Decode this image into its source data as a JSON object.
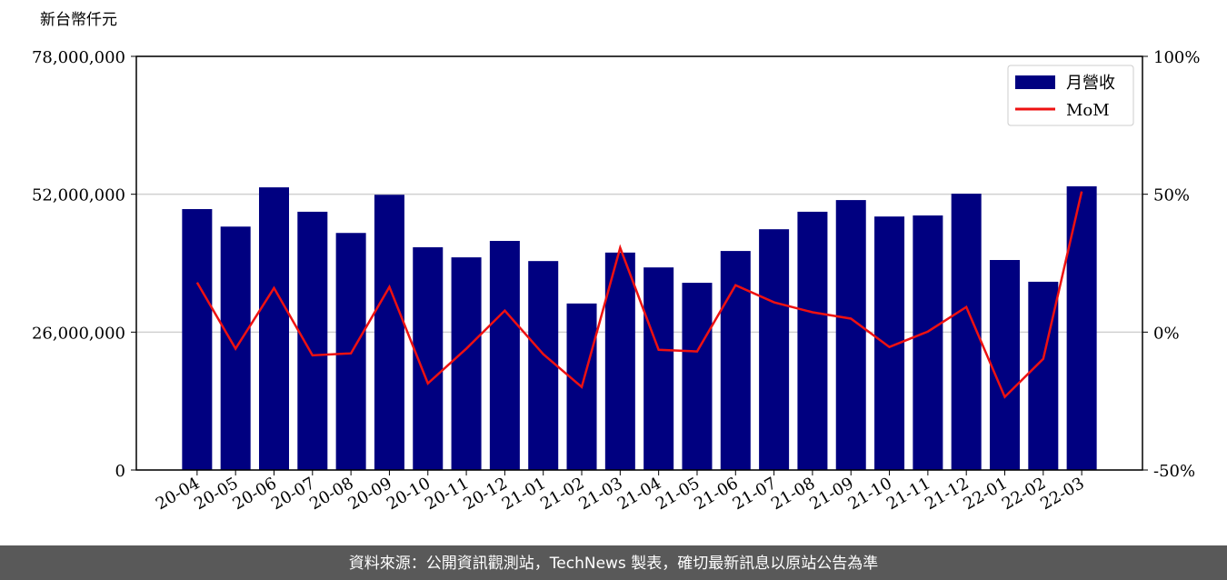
{
  "chart_data": {
    "type": "bar_line",
    "y_label": "新台幣仟元",
    "categories": [
      "20-04",
      "20-05",
      "20-06",
      "20-07",
      "20-08",
      "20-09",
      "20-10",
      "20-11",
      "20-12",
      "21-01",
      "21-02",
      "21-03",
      "21-04",
      "21-05",
      "21-06",
      "21-07",
      "21-08",
      "21-09",
      "21-10",
      "21-11",
      "21-12",
      "22-01",
      "22-02",
      "22-03"
    ],
    "series": [
      {
        "name": "月營收",
        "color": "#000080",
        "values": [
          49200000,
          45900000,
          53300000,
          48700000,
          44700000,
          51900000,
          42000000,
          40100000,
          43200000,
          39400000,
          31400000,
          41000000,
          38200000,
          35300000,
          41300000,
          45400000,
          48700000,
          50900000,
          47800000,
          48000000,
          52100000,
          39600000,
          35500000,
          53500000
        ]
      },
      {
        "name": "MoM",
        "color": "#ee1111",
        "axis": "y2",
        "values": [
          18,
          -6,
          16,
          -8.4,
          -7.7,
          16.4,
          -18.6,
          -6,
          7.8,
          -8,
          -19.9,
          30.6,
          -6.4,
          -7,
          17,
          10.8,
          7.2,
          4.9,
          -5.4,
          0.2,
          9.1,
          -23.5,
          -9.7,
          51
        ]
      }
    ],
    "ylim": [
      0,
      78000000
    ],
    "yticks": [
      0,
      {
        "value": 26000000,
        "label": "26,000,000"
      },
      {
        "value": 52000000,
        "label": "52,000,000"
      },
      {
        "value": 78000000,
        "label": "78,000,000"
      }
    ],
    "y2lim": [
      -50,
      100
    ],
    "y2ticks": [
      {
        "value": -50,
        "label": "-50%"
      },
      {
        "value": 0,
        "label": "0%"
      },
      {
        "value": 50,
        "label": "50%"
      },
      {
        "value": 100,
        "label": "100%"
      }
    ],
    "grid": true,
    "legend": "upper right",
    "footer": "資料來源：公開資訊觀測站，TechNews 製表，確切最新訊息以原站公告為準"
  }
}
